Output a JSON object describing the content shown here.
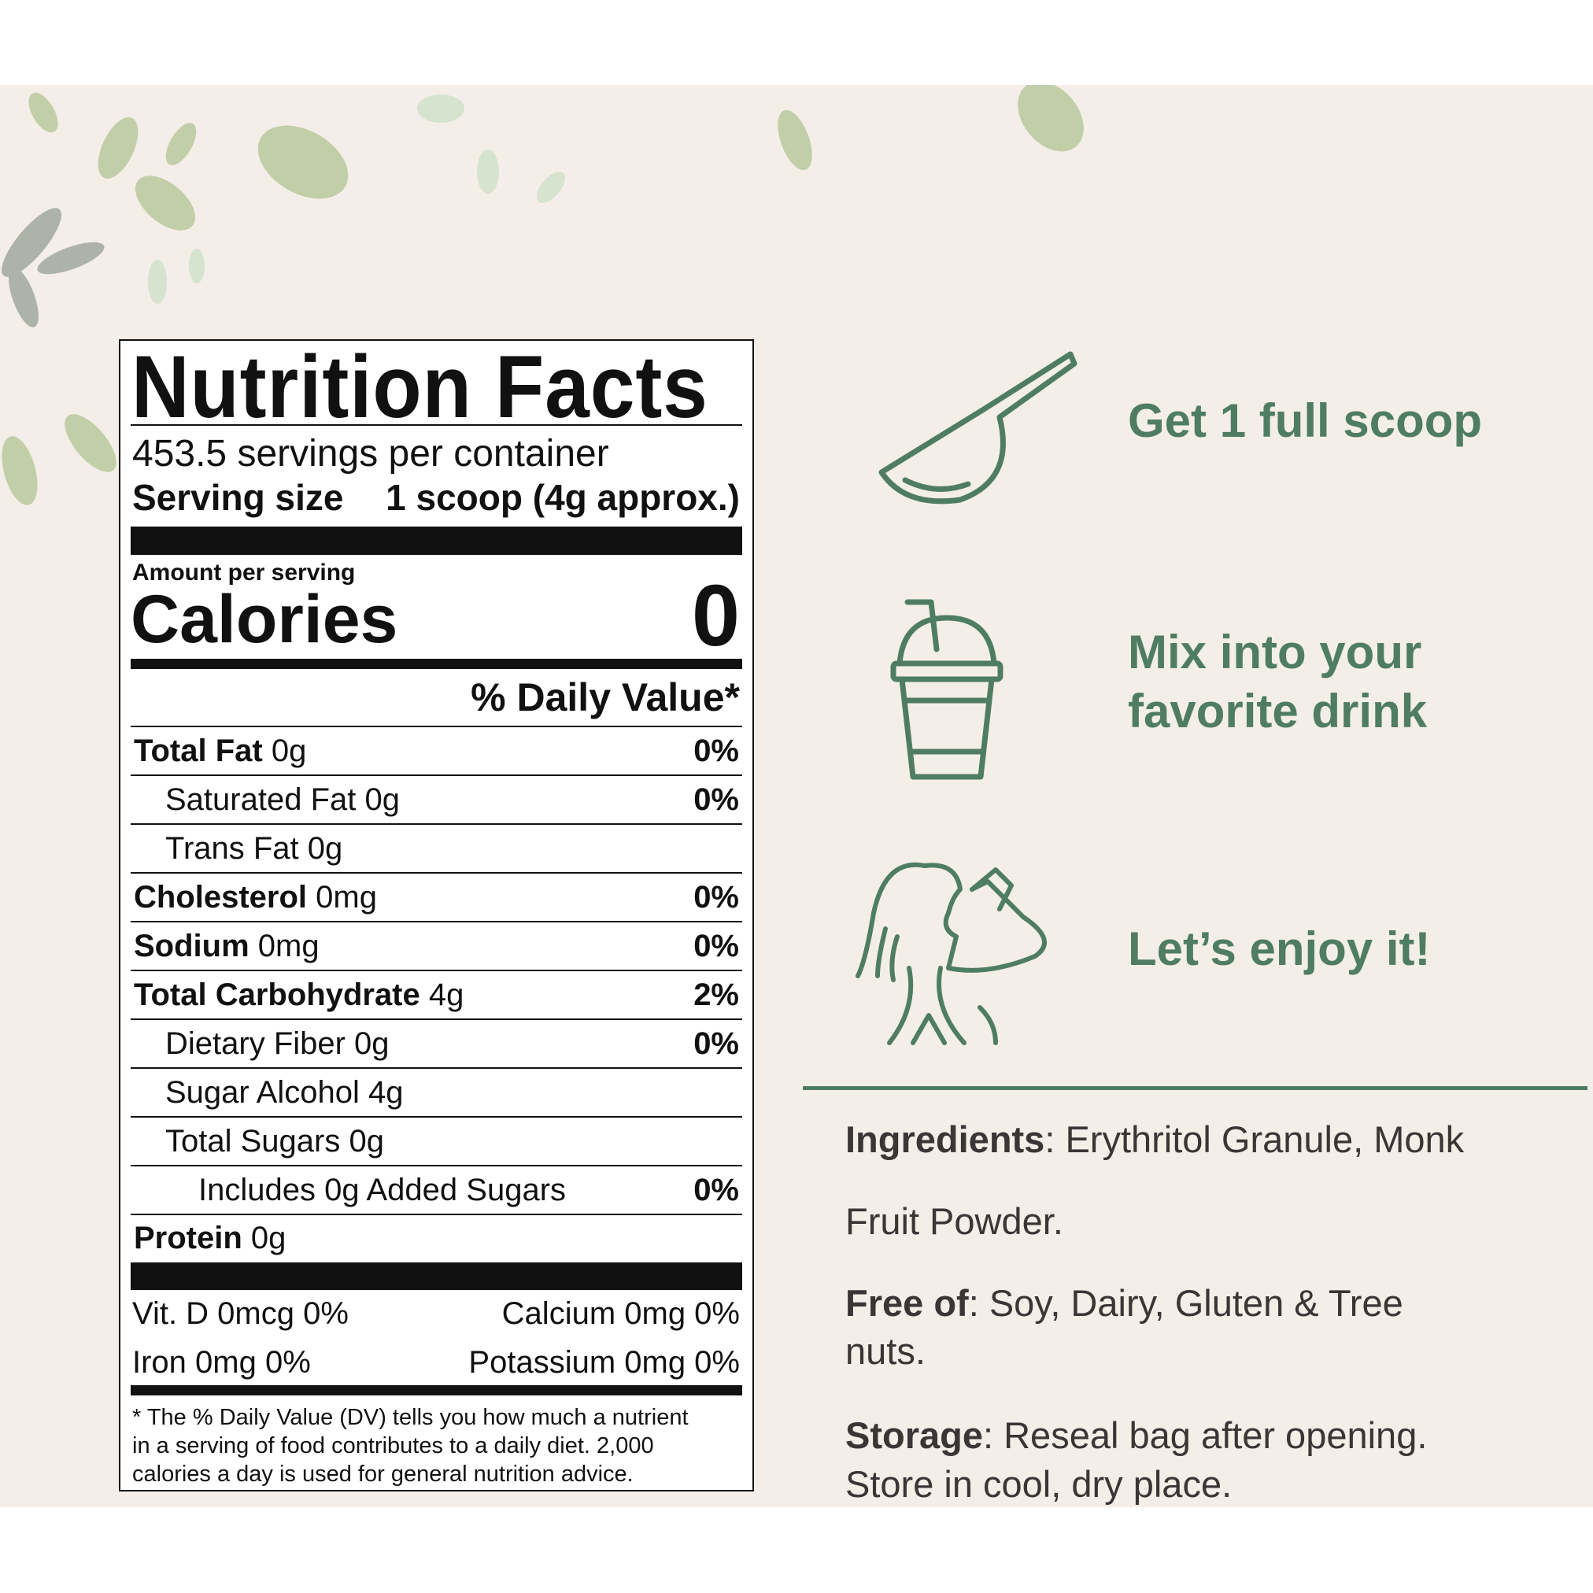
{
  "colors": {
    "background": "#f4eee9",
    "accent_green": "#4f7d63",
    "leaf": "#b7c79a"
  },
  "nutrition": {
    "title": "Nutrition Facts",
    "servings_per_container": "453.5 servings per container",
    "serving_size_label": "Serving size",
    "serving_size_value": "1 scoop (4g approx.)",
    "amount_per_serving": "Amount per serving",
    "calories_label": "Calories",
    "calories_value": "0",
    "daily_value_header": "% Daily Value*",
    "rows": [
      {
        "name": "Total Fat",
        "amount": " 0g",
        "dv": "0%"
      },
      {
        "name": "Saturated Fat 0g",
        "amount": "",
        "dv": "0%"
      },
      {
        "name": "Trans Fat 0g",
        "amount": "",
        "dv": ""
      },
      {
        "name": "Cholesterol",
        "amount": " 0mg",
        "dv": "0%"
      },
      {
        "name": "Sodium",
        "amount": " 0mg",
        "dv": "0%"
      },
      {
        "name": "Total Carbohydrate",
        "amount": " 4g",
        "dv": "2%"
      },
      {
        "name": "Dietary Fiber 0g",
        "amount": "",
        "dv": "0%"
      },
      {
        "name": "Sugar Alcohol 4g",
        "amount": "",
        "dv": ""
      },
      {
        "name": "Total Sugars 0g",
        "amount": "",
        "dv": ""
      },
      {
        "name": "Includes 0g Added Sugars",
        "amount": "",
        "dv": "0%"
      },
      {
        "name": "Protein",
        "amount": " 0g",
        "dv": ""
      }
    ],
    "vitamins": {
      "vit_d": "Vit. D 0mcg 0%",
      "calcium": "Calcium 0mg 0%",
      "iron": "Iron 0mg 0%",
      "potassium": "Potassium 0mg 0%"
    },
    "footnote": [
      "* The % Daily Value (DV) tells you how much a nutrient",
      "in a serving of food contributes to a daily diet. 2,000",
      "calories a day is used for general nutrition advice."
    ]
  },
  "steps": [
    {
      "icon": "scoop-icon",
      "text": "Get 1 full scoop"
    },
    {
      "icon": "drink-cup-icon",
      "line1": "Mix into your",
      "line2": "favorite drink"
    },
    {
      "icon": "woman-drinking-icon",
      "text": "Let’s enjoy it!"
    }
  ],
  "info": {
    "ingredients_label": "Ingredients",
    "ingredients_line1": ": Erythritol Granule, Monk",
    "ingredients_line2": "Fruit Powder.",
    "free_of_label": "Free of",
    "free_of_line1": ": Soy, Dairy, Gluten & Tree",
    "free_of_line2": "nuts.",
    "storage_label": "Storage",
    "storage_line1": ": Reseal bag after opening.",
    "storage_line2": "Store in cool, dry place."
  }
}
